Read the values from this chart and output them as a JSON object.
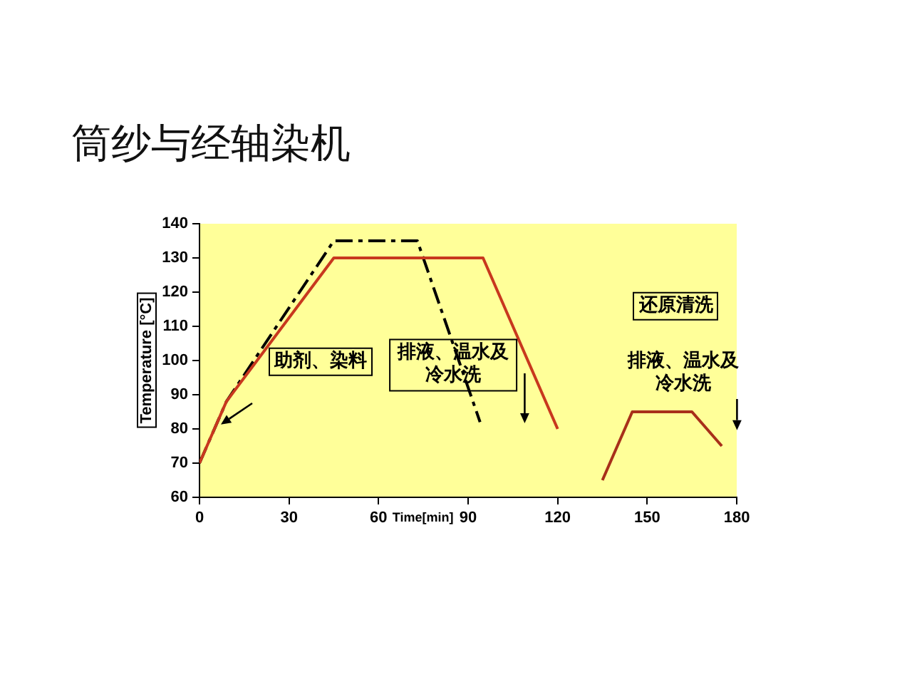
{
  "chart_data": {
    "type": "line",
    "title": "筒纱与经轴染机",
    "xlabel": "Time[min]",
    "ylabel": "Temperature [°C]",
    "series": [
      {
        "color": "#c8381e",
        "x": [
          0,
          9,
          45,
          95,
          120
        ],
        "values": [
          70,
          88,
          130,
          130,
          80
        ],
        "line_style": "solid"
      },
      {
        "color": "#000000",
        "x": [
          0,
          9,
          45,
          73,
          94
        ],
        "values": [
          70,
          88,
          135,
          135,
          82
        ],
        "line_style": "dashed"
      },
      {
        "color": "#a8301a",
        "x": [
          135,
          145,
          165,
          175
        ],
        "values": [
          65,
          85,
          85,
          75
        ],
        "line_style": "solid"
      }
    ],
    "xlim": [
      0,
      180
    ],
    "ylim": [
      60,
      140
    ],
    "xticks": [
      0,
      30,
      60,
      90,
      120,
      150,
      180
    ],
    "yticks": [
      60,
      70,
      80,
      90,
      100,
      110,
      120,
      130,
      140
    ],
    "annotations": [
      "助剂、染料",
      "排液、温水及冷水洗",
      "还原清洗",
      "排液、温水及冷水洗"
    ],
    "grid": false,
    "legend": false,
    "marker": "none"
  }
}
